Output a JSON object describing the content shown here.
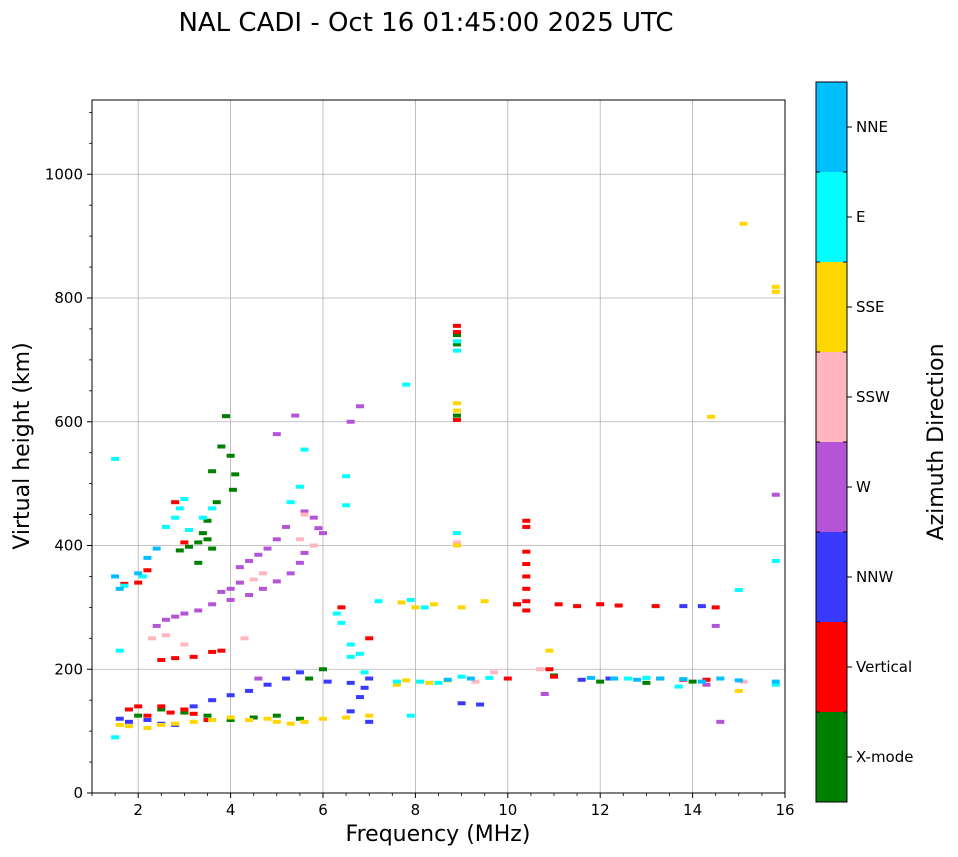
{
  "chart_data": {
    "type": "scatter",
    "title": "NAL CADI - Oct 16 01:45:00 2025 UTC",
    "xlabel": "Frequency (MHz)",
    "ylabel": "Virtual height (km)",
    "xlim": [
      1,
      16
    ],
    "ylim": [
      0,
      1120
    ],
    "xticks": [
      2,
      4,
      6,
      8,
      10,
      12,
      14,
      16
    ],
    "yticks": [
      0,
      200,
      400,
      600,
      800,
      1000
    ],
    "grid": true,
    "colorbar": {
      "label": "Azimuth Direction",
      "categories": [
        "X-mode",
        "Vertical",
        "NNW",
        "W",
        "SSW",
        "SSE",
        "E",
        "NNE"
      ],
      "colors": [
        "#008000",
        "#ff0000",
        "#3a3aff",
        "#b455d8",
        "#ffb6c1",
        "#ffd700",
        "#00ffff",
        "#00bfff"
      ]
    },
    "series": [
      {
        "name": "X-mode",
        "points": [
          [
            3.9,
            609
          ],
          [
            3.8,
            560
          ],
          [
            3.6,
            520
          ],
          [
            3.7,
            470
          ],
          [
            3.5,
            440
          ],
          [
            3.4,
            420
          ],
          [
            3.3,
            405
          ],
          [
            3.1,
            398
          ],
          [
            2.9,
            392
          ],
          [
            3.5,
            410
          ],
          [
            3.6,
            395
          ],
          [
            3.3,
            372
          ],
          [
            4.0,
            545
          ],
          [
            4.1,
            515
          ],
          [
            4.05,
            490
          ],
          [
            2.0,
            125
          ],
          [
            2.5,
            135
          ],
          [
            3.0,
            130
          ],
          [
            3.5,
            125
          ],
          [
            4.0,
            118
          ],
          [
            4.5,
            122
          ],
          [
            5.0,
            125
          ],
          [
            5.5,
            120
          ],
          [
            6.0,
            200
          ],
          [
            5.7,
            185
          ],
          [
            8.9,
            725
          ],
          [
            8.9,
            740
          ],
          [
            8.9,
            610
          ],
          [
            10.2,
            305
          ],
          [
            11.0,
            190
          ],
          [
            12.0,
            180
          ],
          [
            13.0,
            178
          ],
          [
            14.0,
            180
          ]
        ]
      },
      {
        "name": "Vertical",
        "points": [
          [
            1.8,
            135
          ],
          [
            2.0,
            140
          ],
          [
            2.2,
            125
          ],
          [
            2.5,
            140
          ],
          [
            2.7,
            130
          ],
          [
            3.0,
            135
          ],
          [
            3.2,
            128
          ],
          [
            3.5,
            118
          ],
          [
            3.8,
            230
          ],
          [
            2.2,
            360
          ],
          [
            2.0,
            340
          ],
          [
            1.7,
            338
          ],
          [
            2.8,
            470
          ],
          [
            3.0,
            405
          ],
          [
            2.5,
            215
          ],
          [
            2.8,
            218
          ],
          [
            3.2,
            220
          ],
          [
            3.6,
            228
          ],
          [
            6.4,
            300
          ],
          [
            7.0,
            250
          ],
          [
            8.9,
            755
          ],
          [
            8.9,
            745
          ],
          [
            8.9,
            603
          ],
          [
            10.4,
            440
          ],
          [
            10.4,
            430
          ],
          [
            10.4,
            390
          ],
          [
            10.4,
            370
          ],
          [
            10.4,
            350
          ],
          [
            10.4,
            330
          ],
          [
            10.4,
            310
          ],
          [
            10.4,
            295
          ],
          [
            10.2,
            305
          ],
          [
            10.0,
            185
          ],
          [
            10.9,
            200
          ],
          [
            11.0,
            188
          ],
          [
            11.1,
            305
          ],
          [
            11.5,
            302
          ],
          [
            12.0,
            305
          ],
          [
            12.4,
            303
          ],
          [
            13.2,
            302
          ],
          [
            13.3,
            185
          ],
          [
            13.8,
            183
          ],
          [
            14.5,
            300
          ],
          [
            14.3,
            183
          ]
        ]
      },
      {
        "name": "NNW",
        "points": [
          [
            1.6,
            120
          ],
          [
            1.8,
            115
          ],
          [
            2.2,
            118
          ],
          [
            2.5,
            112
          ],
          [
            2.8,
            110
          ],
          [
            3.2,
            140
          ],
          [
            3.6,
            150
          ],
          [
            4.0,
            158
          ],
          [
            4.4,
            165
          ],
          [
            4.8,
            175
          ],
          [
            5.2,
            185
          ],
          [
            5.5,
            195
          ],
          [
            6.1,
            180
          ],
          [
            6.6,
            178
          ],
          [
            6.9,
            170
          ],
          [
            7.0,
            185
          ],
          [
            6.8,
            155
          ],
          [
            6.6,
            132
          ],
          [
            7.0,
            115
          ],
          [
            9.0,
            145
          ],
          [
            9.4,
            143
          ],
          [
            13.8,
            302
          ],
          [
            14.2,
            302
          ],
          [
            12.2,
            185
          ],
          [
            11.6,
            183
          ]
        ]
      },
      {
        "name": "W",
        "points": [
          [
            2.4,
            270
          ],
          [
            2.6,
            280
          ],
          [
            2.8,
            285
          ],
          [
            3.0,
            290
          ],
          [
            3.3,
            295
          ],
          [
            3.6,
            305
          ],
          [
            4.0,
            312
          ],
          [
            4.4,
            320
          ],
          [
            4.7,
            330
          ],
          [
            5.0,
            342
          ],
          [
            5.3,
            355
          ],
          [
            5.5,
            372
          ],
          [
            5.6,
            388
          ],
          [
            4.2,
            365
          ],
          [
            4.4,
            375
          ],
          [
            4.6,
            385
          ],
          [
            4.8,
            395
          ],
          [
            5.0,
            410
          ],
          [
            5.2,
            430
          ],
          [
            5.6,
            455
          ],
          [
            5.8,
            445
          ],
          [
            5.9,
            428
          ],
          [
            6.0,
            420
          ],
          [
            4.0,
            330
          ],
          [
            3.8,
            325
          ],
          [
            4.2,
            340
          ],
          [
            5.4,
            610
          ],
          [
            6.6,
            600
          ],
          [
            6.8,
            625
          ],
          [
            5.0,
            580
          ],
          [
            4.6,
            185
          ],
          [
            14.5,
            270
          ],
          [
            14.6,
            115
          ],
          [
            14.3,
            175
          ],
          [
            15.8,
            482
          ],
          [
            10.8,
            160
          ]
        ]
      },
      {
        "name": "SSW",
        "points": [
          [
            2.3,
            250
          ],
          [
            2.6,
            255
          ],
          [
            3.0,
            240
          ],
          [
            4.3,
            250
          ],
          [
            4.7,
            355
          ],
          [
            4.5,
            345
          ],
          [
            5.5,
            410
          ],
          [
            5.8,
            400
          ],
          [
            5.6,
            450
          ],
          [
            8.9,
            405
          ],
          [
            9.7,
            195
          ],
          [
            10.7,
            200
          ],
          [
            9.3,
            180
          ],
          [
            15.1,
            180
          ]
        ]
      },
      {
        "name": "SSE",
        "points": [
          [
            1.6,
            110
          ],
          [
            1.8,
            108
          ],
          [
            2.2,
            105
          ],
          [
            2.5,
            110
          ],
          [
            2.8,
            112
          ],
          [
            3.2,
            115
          ],
          [
            3.6,
            118
          ],
          [
            4.0,
            122
          ],
          [
            4.4,
            118
          ],
          [
            4.8,
            120
          ],
          [
            5.0,
            115
          ],
          [
            5.3,
            112
          ],
          [
            5.6,
            115
          ],
          [
            6.0,
            120
          ],
          [
            6.5,
            122
          ],
          [
            7.0,
            125
          ],
          [
            7.8,
            182
          ],
          [
            8.3,
            178
          ],
          [
            8.7,
            182
          ],
          [
            8.9,
            630
          ],
          [
            8.9,
            618
          ],
          [
            8.9,
            400
          ],
          [
            9.0,
            300
          ],
          [
            9.5,
            310
          ],
          [
            8.4,
            305
          ],
          [
            8.0,
            300
          ],
          [
            7.7,
            308
          ],
          [
            7.6,
            175
          ],
          [
            14.4,
            608
          ],
          [
            15.1,
            920
          ],
          [
            15.8,
            818
          ],
          [
            15.8,
            810
          ],
          [
            15.0,
            165
          ],
          [
            10.9,
            230
          ]
        ]
      },
      {
        "name": "E",
        "points": [
          [
            1.5,
            540
          ],
          [
            1.6,
            230
          ],
          [
            1.5,
            90
          ],
          [
            1.7,
            335
          ],
          [
            2.1,
            350
          ],
          [
            2.6,
            430
          ],
          [
            2.9,
            460
          ],
          [
            3.1,
            425
          ],
          [
            3.4,
            445
          ],
          [
            3.6,
            460
          ],
          [
            3.0,
            475
          ],
          [
            2.8,
            445
          ],
          [
            6.3,
            290
          ],
          [
            6.4,
            275
          ],
          [
            6.6,
            240
          ],
          [
            6.8,
            225
          ],
          [
            6.9,
            195
          ],
          [
            7.2,
            310
          ],
          [
            7.8,
            660
          ],
          [
            7.9,
            312
          ],
          [
            8.2,
            300
          ],
          [
            7.6,
            180
          ],
          [
            8.1,
            180
          ],
          [
            8.5,
            178
          ],
          [
            8.9,
            420
          ],
          [
            8.9,
            715
          ],
          [
            8.9,
            730
          ],
          [
            9.0,
            188
          ],
          [
            9.6,
            186
          ],
          [
            12.6,
            185
          ],
          [
            13.0,
            186
          ],
          [
            13.7,
            172
          ],
          [
            15.0,
            328
          ],
          [
            15.8,
            375
          ],
          [
            15.8,
            175
          ],
          [
            7.9,
            125
          ],
          [
            6.6,
            220
          ],
          [
            6.5,
            465
          ],
          [
            6.5,
            512
          ],
          [
            5.6,
            555
          ],
          [
            5.5,
            495
          ],
          [
            5.3,
            470
          ]
        ]
      },
      {
        "name": "NNE",
        "points": [
          [
            1.5,
            350
          ],
          [
            1.6,
            330
          ],
          [
            2.0,
            355
          ],
          [
            2.2,
            380
          ],
          [
            2.4,
            395
          ],
          [
            11.8,
            186
          ],
          [
            12.3,
            185
          ],
          [
            12.8,
            183
          ],
          [
            13.3,
            185
          ],
          [
            13.8,
            184
          ],
          [
            14.2,
            180
          ],
          [
            14.6,
            185
          ],
          [
            15.0,
            182
          ],
          [
            15.8,
            180
          ],
          [
            8.7,
            183
          ],
          [
            9.2,
            185
          ]
        ]
      }
    ]
  }
}
